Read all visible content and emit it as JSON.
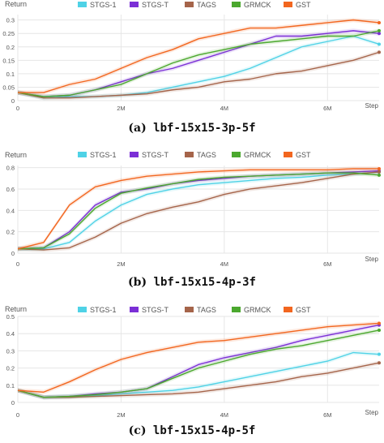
{
  "captions": [
    {
      "letter": "(a)",
      "text": "lbf-15x15-3p-5f"
    },
    {
      "letter": "(b)",
      "text": "lbf-15x15-4p-3f"
    },
    {
      "letter": "(c)",
      "text": "lbf-15x15-4p-5f"
    }
  ],
  "colors": {
    "STGS-1": "#4fd2e6",
    "STGS-T": "#7b2fd6",
    "TAGS": "#a5644a",
    "GRMCK": "#4ba82e",
    "GST": "#f2661f",
    "grid": "#e6e6e6",
    "axis_text": "#555555"
  },
  "chart_data": [
    {
      "type": "line",
      "ylabel": "Return",
      "xlabel": "Step",
      "xlim": [
        0,
        7
      ],
      "x_ticks": [
        0,
        2,
        4,
        6
      ],
      "x_tick_labels": [
        "0",
        "2M",
        "4M",
        "6M"
      ],
      "ylim": [
        0,
        0.32
      ],
      "y_ticks": [
        0,
        0.05,
        0.1,
        0.15,
        0.2,
        0.25,
        0.3
      ],
      "y_tick_labels": [
        "0",
        "0.05",
        "0.1",
        "0.15",
        "0.2",
        "0.25",
        "0.3"
      ],
      "grid": true,
      "legend_position": "top",
      "x": [
        0,
        0.5,
        1,
        1.5,
        2,
        2.5,
        3,
        3.5,
        4,
        4.5,
        5,
        5.5,
        6,
        6.5,
        7
      ],
      "series": [
        {
          "name": "STGS-1",
          "values": [
            0.03,
            0.01,
            0.015,
            0.015,
            0.02,
            0.03,
            0.05,
            0.07,
            0.09,
            0.12,
            0.16,
            0.2,
            0.22,
            0.24,
            0.21
          ]
        },
        {
          "name": "STGS-T",
          "values": [
            0.03,
            0.015,
            0.02,
            0.04,
            0.07,
            0.1,
            0.12,
            0.15,
            0.18,
            0.21,
            0.24,
            0.24,
            0.25,
            0.26,
            0.25
          ]
        },
        {
          "name": "TAGS",
          "values": [
            0.03,
            0.01,
            0.01,
            0.015,
            0.02,
            0.025,
            0.04,
            0.05,
            0.07,
            0.08,
            0.1,
            0.11,
            0.13,
            0.15,
            0.18
          ]
        },
        {
          "name": "GRMCK",
          "values": [
            0.03,
            0.015,
            0.02,
            0.04,
            0.06,
            0.1,
            0.14,
            0.17,
            0.19,
            0.21,
            0.22,
            0.23,
            0.24,
            0.24,
            0.26
          ]
        },
        {
          "name": "GST",
          "values": [
            0.03,
            0.03,
            0.06,
            0.08,
            0.12,
            0.16,
            0.19,
            0.23,
            0.25,
            0.27,
            0.27,
            0.28,
            0.29,
            0.3,
            0.29
          ]
        }
      ]
    },
    {
      "type": "line",
      "ylabel": "Return",
      "xlabel": "Step",
      "xlim": [
        0,
        7
      ],
      "x_ticks": [
        0,
        2,
        4,
        6
      ],
      "x_tick_labels": [
        "0",
        "2M",
        "4M",
        "6M"
      ],
      "ylim": [
        0,
        0.82
      ],
      "y_ticks": [
        0,
        0.2,
        0.4,
        0.6,
        0.8
      ],
      "y_tick_labels": [
        "0",
        "0.2",
        "0.4",
        "0.6",
        "0.8"
      ],
      "grid": true,
      "legend_position": "top",
      "x": [
        0,
        0.5,
        1,
        1.5,
        2,
        2.5,
        3,
        3.5,
        4,
        4.5,
        5,
        5.5,
        6,
        6.5,
        7
      ],
      "series": [
        {
          "name": "STGS-1",
          "values": [
            0.04,
            0.04,
            0.1,
            0.3,
            0.45,
            0.55,
            0.6,
            0.64,
            0.66,
            0.68,
            0.7,
            0.71,
            0.73,
            0.74,
            0.76
          ]
        },
        {
          "name": "STGS-T",
          "values": [
            0.04,
            0.05,
            0.2,
            0.45,
            0.57,
            0.6,
            0.65,
            0.68,
            0.7,
            0.72,
            0.73,
            0.74,
            0.75,
            0.76,
            0.77
          ]
        },
        {
          "name": "TAGS",
          "values": [
            0.04,
            0.03,
            0.05,
            0.15,
            0.28,
            0.37,
            0.43,
            0.48,
            0.55,
            0.6,
            0.63,
            0.66,
            0.7,
            0.74,
            0.76
          ]
        },
        {
          "name": "GRMCK",
          "values": [
            0.04,
            0.05,
            0.18,
            0.42,
            0.56,
            0.61,
            0.65,
            0.69,
            0.71,
            0.72,
            0.73,
            0.74,
            0.75,
            0.75,
            0.73
          ]
        },
        {
          "name": "GST",
          "values": [
            0.04,
            0.1,
            0.45,
            0.62,
            0.68,
            0.72,
            0.74,
            0.76,
            0.77,
            0.78,
            0.78,
            0.78,
            0.78,
            0.79,
            0.79
          ]
        }
      ]
    },
    {
      "type": "line",
      "ylabel": "Return",
      "xlabel": "Step",
      "xlim": [
        0,
        7
      ],
      "x_ticks": [
        0,
        2,
        4,
        6
      ],
      "x_tick_labels": [
        "0",
        "2M",
        "4M",
        "6M"
      ],
      "ylim": [
        0,
        0.5
      ],
      "y_ticks": [
        0,
        0.1,
        0.2,
        0.3,
        0.4,
        0.5
      ],
      "y_tick_labels": [
        "0",
        "0.1",
        "0.2",
        "0.3",
        "0.4",
        "0.5"
      ],
      "grid": true,
      "legend_position": "top",
      "x": [
        0,
        0.5,
        1,
        1.5,
        2,
        2.5,
        3,
        3.5,
        4,
        4.5,
        5,
        5.5,
        6,
        6.5,
        7
      ],
      "series": [
        {
          "name": "STGS-1",
          "values": [
            0.07,
            0.03,
            0.035,
            0.04,
            0.05,
            0.06,
            0.07,
            0.09,
            0.12,
            0.15,
            0.18,
            0.21,
            0.24,
            0.29,
            0.28
          ]
        },
        {
          "name": "STGS-T",
          "values": [
            0.07,
            0.03,
            0.035,
            0.05,
            0.06,
            0.08,
            0.15,
            0.22,
            0.26,
            0.29,
            0.32,
            0.36,
            0.39,
            0.42,
            0.45
          ]
        },
        {
          "name": "TAGS",
          "values": [
            0.07,
            0.03,
            0.03,
            0.035,
            0.04,
            0.045,
            0.05,
            0.06,
            0.08,
            0.1,
            0.12,
            0.15,
            0.17,
            0.2,
            0.23
          ]
        },
        {
          "name": "GRMCK",
          "values": [
            0.07,
            0.03,
            0.035,
            0.045,
            0.06,
            0.08,
            0.14,
            0.2,
            0.24,
            0.28,
            0.31,
            0.33,
            0.36,
            0.39,
            0.42
          ]
        },
        {
          "name": "GST",
          "values": [
            0.07,
            0.06,
            0.12,
            0.19,
            0.25,
            0.29,
            0.32,
            0.35,
            0.36,
            0.38,
            0.4,
            0.42,
            0.44,
            0.45,
            0.46
          ]
        }
      ]
    }
  ]
}
